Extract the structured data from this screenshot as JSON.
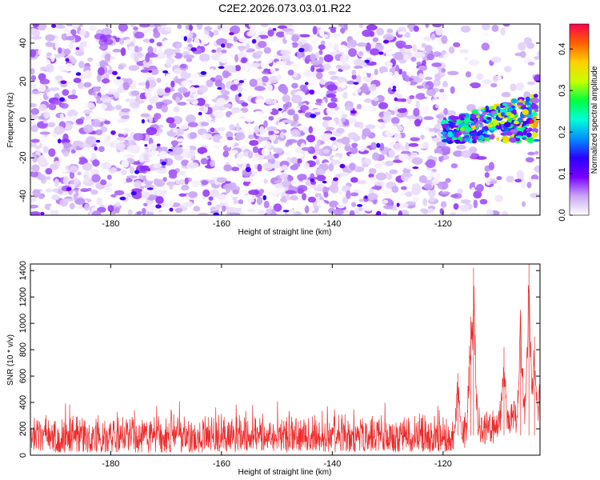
{
  "title": "C2E2.2026.073.03.01.R22",
  "chart_data": [
    {
      "type": "heatmap",
      "name": "spectrogram",
      "xlabel": "Height of straight line (km)",
      "ylabel": "Frequency (Hz)",
      "xlim": [
        -194.5,
        -102.5
      ],
      "ylim": [
        -50,
        50
      ],
      "xticks": [
        -180,
        -160,
        -140,
        -120
      ],
      "yticks": [
        -40,
        -20,
        0,
        20,
        40
      ],
      "colorbar": {
        "label": "Normalized spectral amplitude",
        "range": [
          0,
          0.46
        ],
        "ticks": [
          0.0,
          0.1,
          0.2,
          0.3,
          0.4
        ],
        "tick_labels": [
          "0.0",
          "0.1",
          "0.2",
          "0.3",
          "0.4"
        ],
        "colors": [
          "#ffffff",
          "#c9a6f5",
          "#7a00ff",
          "#2a00ff",
          "#0090ff",
          "#00ffd8",
          "#00ff40",
          "#c8ff00",
          "#ffd000",
          "#ff6000",
          "#ff0050"
        ]
      },
      "background_amplitude": [
        0.0,
        0.08
      ],
      "sparse_region_start_x": -119.5,
      "signal_band": {
        "x_range": [
          -120,
          -103
        ],
        "center_freq": [
          -6,
          1
        ],
        "peak_amplitude": 0.46
      }
    },
    {
      "type": "line",
      "name": "snr",
      "xlabel": "Height of straight line (km)",
      "ylabel": "SNR (10 * v/v)",
      "xlim": [
        -194.5,
        -102.5
      ],
      "ylim": [
        0,
        1450
      ],
      "xticks": [
        -180,
        -160,
        -140,
        -120
      ],
      "yticks": [
        0,
        200,
        400,
        600,
        800,
        1000,
        1200,
        1400
      ],
      "line_color": "#ee2a2a",
      "baseline_range": [
        20,
        330
      ],
      "occasional_spikes_to": 410,
      "peaks": [
        {
          "x": -114.5,
          "y": 1420
        },
        {
          "x": -115.0,
          "y": 1050
        },
        {
          "x": -104.5,
          "y": 1450
        },
        {
          "x": -106.0,
          "y": 1070
        },
        {
          "x": -103.5,
          "y": 900
        },
        {
          "x": -109.0,
          "y": 820
        },
        {
          "x": -117.3,
          "y": 620
        }
      ]
    }
  ]
}
